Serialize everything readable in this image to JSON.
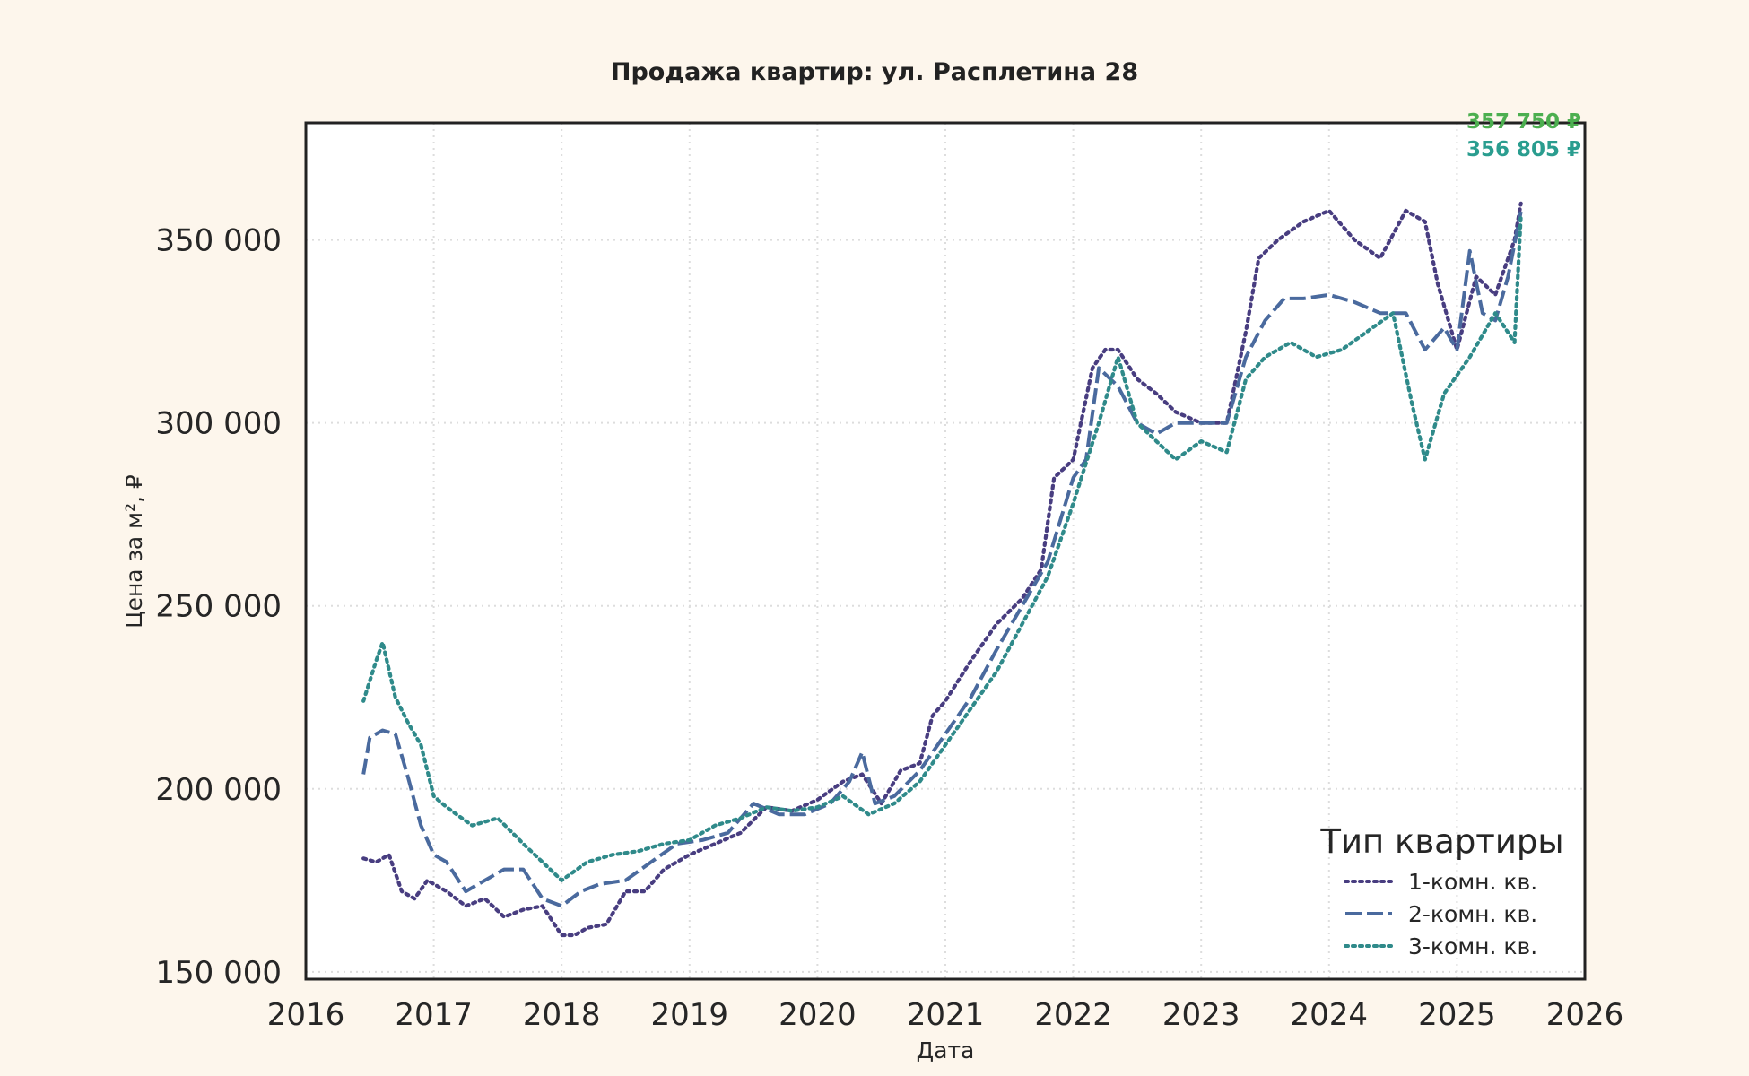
{
  "chart_data": {
    "type": "line",
    "title": "Продажа квартир: ул. Расплетина 28",
    "xlabel": "Дата",
    "ylabel": "Цена за м², ₽",
    "xlim": [
      2016,
      2026
    ],
    "ylim": [
      148000,
      382000
    ],
    "x_ticks": [
      2016,
      2017,
      2018,
      2019,
      2020,
      2021,
      2022,
      2023,
      2024,
      2025,
      2026
    ],
    "x_tick_labels": [
      "2016",
      "2017",
      "2018",
      "2019",
      "2020",
      "2021",
      "2022",
      "2023",
      "2024",
      "2025",
      "2026"
    ],
    "y_ticks": [
      150000,
      200000,
      250000,
      300000,
      350000
    ],
    "y_tick_labels": [
      "150 000",
      "200 000",
      "250 000",
      "300 000",
      "350 000"
    ],
    "grid": true,
    "legend": {
      "title": "Тип квартиры",
      "position": "bottom-right"
    },
    "series": [
      {
        "name": "1-комн. кв.",
        "color": "#483d80",
        "dash": "dotted",
        "x": [
          2016.45,
          2016.55,
          2016.65,
          2016.75,
          2016.85,
          2016.95,
          2017.1,
          2017.25,
          2017.4,
          2017.55,
          2017.7,
          2017.85,
          2018.0,
          2018.1,
          2018.2,
          2018.35,
          2018.5,
          2018.65,
          2018.8,
          2019.0,
          2019.2,
          2019.4,
          2019.6,
          2019.8,
          2020.0,
          2020.2,
          2020.35,
          2020.5,
          2020.65,
          2020.8,
          2020.9,
          2021.0,
          2021.2,
          2021.4,
          2021.6,
          2021.75,
          2021.85,
          2022.0,
          2022.15,
          2022.25,
          2022.35,
          2022.5,
          2022.65,
          2022.8,
          2023.0,
          2023.2,
          2023.35,
          2023.45,
          2023.6,
          2023.8,
          2024.0,
          2024.2,
          2024.4,
          2024.6,
          2024.75,
          2024.85,
          2025.0,
          2025.15,
          2025.3,
          2025.45,
          2025.5
        ],
        "y": [
          181000,
          180000,
          182000,
          172000,
          170000,
          175000,
          172000,
          168000,
          170000,
          165000,
          167000,
          168000,
          160000,
          160000,
          162000,
          163000,
          172000,
          172000,
          178000,
          182000,
          185000,
          188000,
          195000,
          194000,
          197000,
          202000,
          204000,
          196000,
          205000,
          207000,
          220000,
          224000,
          235000,
          245000,
          252000,
          260000,
          285000,
          290000,
          315000,
          320000,
          320000,
          312000,
          308000,
          303000,
          300000,
          300000,
          325000,
          345000,
          350000,
          355000,
          358000,
          350000,
          345000,
          358000,
          355000,
          338000,
          320000,
          340000,
          335000,
          350000,
          360000
        ]
      },
      {
        "name": "2-комн. кв.",
        "color": "#4a6a9e",
        "dash": "dashed",
        "x": [
          2016.45,
          2016.5,
          2016.6,
          2016.7,
          2016.8,
          2016.9,
          2017.0,
          2017.1,
          2017.25,
          2017.4,
          2017.55,
          2017.7,
          2017.85,
          2018.0,
          2018.15,
          2018.3,
          2018.5,
          2018.7,
          2018.9,
          2019.1,
          2019.3,
          2019.5,
          2019.7,
          2019.9,
          2020.1,
          2020.25,
          2020.35,
          2020.45,
          2020.6,
          2020.8,
          2021.0,
          2021.2,
          2021.4,
          2021.6,
          2021.8,
          2022.0,
          2022.1,
          2022.2,
          2022.35,
          2022.5,
          2022.65,
          2022.8,
          2023.0,
          2023.2,
          2023.35,
          2023.5,
          2023.65,
          2023.8,
          2024.0,
          2024.2,
          2024.4,
          2024.6,
          2024.75,
          2024.9,
          2025.0,
          2025.1,
          2025.2,
          2025.3,
          2025.4,
          2025.5
        ],
        "y": [
          204000,
          214000,
          216000,
          215000,
          203000,
          190000,
          182000,
          180000,
          172000,
          175000,
          178000,
          178000,
          170000,
          168000,
          172000,
          174000,
          175000,
          180000,
          185000,
          186000,
          188000,
          196000,
          193000,
          193000,
          196000,
          202000,
          210000,
          196000,
          198000,
          205000,
          215000,
          225000,
          238000,
          250000,
          262000,
          285000,
          290000,
          315000,
          310000,
          300000,
          297000,
          300000,
          300000,
          300000,
          318000,
          328000,
          334000,
          334000,
          335000,
          333000,
          330000,
          330000,
          320000,
          326000,
          320000,
          347000,
          330000,
          328000,
          340000,
          357750
        ]
      },
      {
        "name": "3-комн. кв.",
        "color": "#2f8a8a",
        "dash": "dotted",
        "x": [
          2016.45,
          2016.55,
          2016.6,
          2016.7,
          2016.8,
          2016.9,
          2017.0,
          2017.1,
          2017.3,
          2017.5,
          2017.7,
          2017.85,
          2018.0,
          2018.2,
          2018.4,
          2018.6,
          2018.8,
          2019.0,
          2019.2,
          2019.4,
          2019.6,
          2019.8,
          2020.0,
          2020.2,
          2020.4,
          2020.6,
          2020.8,
          2021.0,
          2021.2,
          2021.4,
          2021.6,
          2021.8,
          2022.0,
          2022.2,
          2022.35,
          2022.5,
          2022.65,
          2022.8,
          2023.0,
          2023.2,
          2023.35,
          2023.5,
          2023.7,
          2023.9,
          2024.1,
          2024.3,
          2024.5,
          2024.65,
          2024.75,
          2024.9,
          2025.1,
          2025.3,
          2025.45,
          2025.5
        ],
        "y": [
          224000,
          235000,
          240000,
          225000,
          218000,
          212000,
          198000,
          195000,
          190000,
          192000,
          185000,
          180000,
          175000,
          180000,
          182000,
          183000,
          185000,
          186000,
          190000,
          192000,
          195000,
          194000,
          195000,
          198000,
          193000,
          196000,
          202000,
          212000,
          222000,
          232000,
          245000,
          258000,
          278000,
          300000,
          318000,
          300000,
          295000,
          290000,
          295000,
          292000,
          312000,
          318000,
          322000,
          318000,
          320000,
          325000,
          330000,
          305000,
          290000,
          308000,
          318000,
          330000,
          322000,
          356805
        ]
      }
    ],
    "end_labels": [
      {
        "text": "357 750 ₽",
        "color": "#4caf50"
      },
      {
        "text": "356 805 ₽",
        "color": "#2a9d8f"
      }
    ]
  }
}
